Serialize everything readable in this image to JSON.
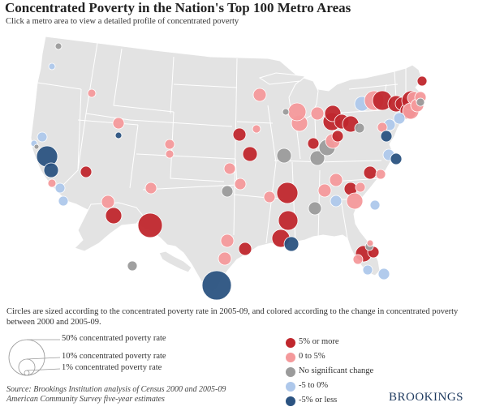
{
  "header": {
    "title": "Concentrated Poverty in the Nation's Top 100 Metro Areas",
    "subtitle": "Click a metro area to view a detailed profile of concentrated poverty"
  },
  "caption": "Circles are sized according to the concentrated poverty rate in 2005-09, and colored according to the change in concentrated poverty between 2000 and 2005-09.",
  "size_legend": [
    {
      "label": "50% concentrated poverty rate",
      "rate": 50
    },
    {
      "label": "10% concentrated poverty rate",
      "rate": 10
    },
    {
      "label": "1% concentrated poverty rate",
      "rate": 1
    }
  ],
  "color_legend": [
    {
      "key": "up5",
      "label": "5% or more",
      "color": "#c0272d"
    },
    {
      "key": "up0",
      "label": "0 to 5%",
      "color": "#f4999b"
    },
    {
      "key": "ns",
      "label": "No significant change",
      "color": "#9b9b9b"
    },
    {
      "key": "down0",
      "label": "-5 to 0%",
      "color": "#aec8eb"
    },
    {
      "key": "down5",
      "label": "-5% or less",
      "color": "#2b5381"
    }
  ],
  "source": "Source: Brookings Institution analysis of Census 2000 and 2005-09 American Community Survey five-year estimates",
  "logo": "BROOKINGS",
  "colors": {
    "land": "#e3e3e3",
    "state_border": "#ffffff",
    "background": "#ffffff"
  }
}
